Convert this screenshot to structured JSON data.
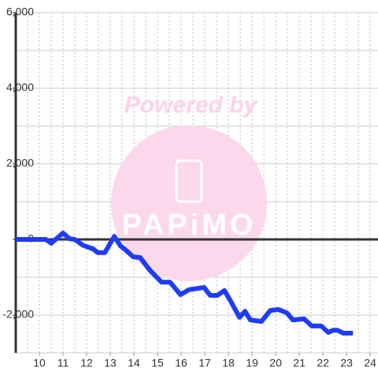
{
  "chart_data": {
    "type": "line",
    "annotations": [
      "Powered by",
      "PAPiMO"
    ],
    "x": [
      9.0,
      10.27,
      10.5,
      11.0,
      11.27,
      11.5,
      11.83,
      12.27,
      12.47,
      12.77,
      13.17,
      13.43,
      13.67,
      13.97,
      14.27,
      14.67,
      15.17,
      15.53,
      15.97,
      16.33,
      16.97,
      17.23,
      17.53,
      17.83,
      18.13,
      18.47,
      18.7,
      18.93,
      19.4,
      19.77,
      20.1,
      20.47,
      20.73,
      21.2,
      21.53,
      21.93,
      22.23,
      22.43,
      22.6,
      22.87,
      23.27
    ],
    "series": [
      {
        "color": "#1f3cf5",
        "values": [
          0,
          0,
          -100,
          170,
          20,
          0,
          -150,
          -250,
          -350,
          -350,
          80,
          -170,
          -290,
          -460,
          -480,
          -810,
          -1130,
          -1130,
          -1460,
          -1330,
          -1270,
          -1480,
          -1480,
          -1350,
          -1670,
          -2060,
          -1900,
          -2130,
          -2170,
          -1880,
          -1850,
          -1940,
          -2130,
          -2100,
          -2290,
          -2290,
          -2460,
          -2400,
          -2400,
          -2480,
          -2480
        ]
      }
    ],
    "xlim": [
      9,
      24.33
    ],
    "ylim": [
      -3000,
      6000
    ],
    "xticks": [
      10,
      11,
      12,
      13,
      14,
      15,
      16,
      17,
      18,
      19,
      20,
      21,
      22,
      23,
      24
    ],
    "yticks": [
      {
        "value": -2000,
        "label": "-2,000"
      },
      0,
      {
        "value": 2000,
        "label": "2,000"
      },
      {
        "value": 4000,
        "label": "4,000"
      },
      {
        "value": 6000,
        "label": "6,000"
      }
    ],
    "ygrid": [
      -3000,
      -2000,
      -1000,
      0,
      1000,
      2000,
      3000,
      4000,
      5000,
      6000
    ],
    "xgrid": [
      9.5,
      10,
      10.5,
      11,
      11.5,
      12,
      12.5,
      13,
      13.5,
      14,
      14.5,
      15,
      15.5,
      16,
      16.5,
      17,
      17.5,
      18,
      18.5,
      19,
      19.5,
      20,
      20.5,
      21,
      21.5,
      22,
      22.5,
      23,
      23.5,
      24
    ]
  }
}
